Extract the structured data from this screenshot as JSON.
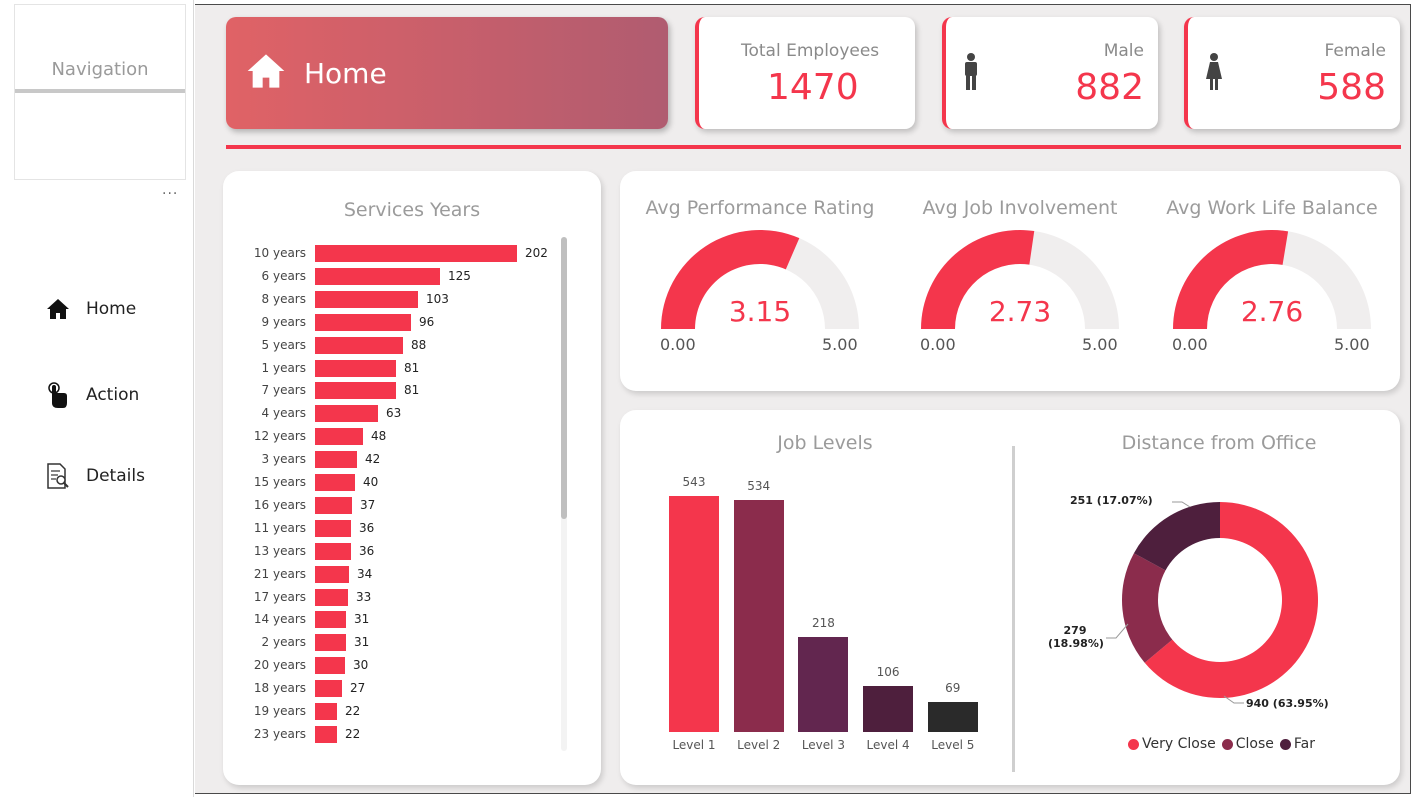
{
  "sidebar": {
    "title": "Navigation",
    "more": "...",
    "items": [
      {
        "label": "Home",
        "icon": "home-icon"
      },
      {
        "label": "Action",
        "icon": "hand-pointer-icon"
      },
      {
        "label": "Details",
        "icon": "document-search-icon"
      }
    ]
  },
  "header": {
    "title": "Home",
    "kpis": {
      "total": {
        "label": "Total Employees",
        "value": "1470"
      },
      "male": {
        "label": "Male",
        "value": "882"
      },
      "female": {
        "label": "Female",
        "value": "588"
      }
    }
  },
  "colors": {
    "accent": "#f4364c",
    "level2": "#8b2c4c",
    "level3": "#62264f",
    "level4": "#4e1f3d",
    "level5": "#2a2a2a",
    "gauge_track": "#f0eeee"
  },
  "gauges": [
    {
      "title": "Avg Performance Rating",
      "value": "3.15",
      "min": "0.00",
      "max": "5.00"
    },
    {
      "title": "Avg Job Involvement",
      "value": "2.73",
      "min": "0.00",
      "max": "5.00"
    },
    {
      "title": "Avg Work Life Balance",
      "value": "2.76",
      "min": "0.00",
      "max": "5.00"
    }
  ],
  "chart_data": [
    {
      "type": "bar",
      "orientation": "horizontal",
      "title": "Services Years",
      "categories": [
        "10 years",
        "6 years",
        "8 years",
        "9 years",
        "5 years",
        "1 years",
        "7 years",
        "4 years",
        "12 years",
        "3 years",
        "15 years",
        "16 years",
        "11 years",
        "13 years",
        "21 years",
        "17 years",
        "14 years",
        "2 years",
        "20 years",
        "18 years",
        "19 years",
        "23 years"
      ],
      "values": [
        202,
        125,
        103,
        96,
        88,
        81,
        81,
        63,
        48,
        42,
        40,
        37,
        36,
        36,
        34,
        33,
        31,
        31,
        30,
        27,
        22,
        22
      ]
    },
    {
      "type": "bar",
      "title": "Job Levels",
      "categories": [
        "Level 1",
        "Level 2",
        "Level 3",
        "Level 4",
        "Level 5"
      ],
      "values": [
        543,
        534,
        218,
        106,
        69
      ]
    },
    {
      "type": "pie",
      "variant": "donut",
      "title": "Distance from Office",
      "slices": [
        {
          "name": "Very Close",
          "value": 940,
          "label": "940 (63.95%)",
          "color": "#f4364c"
        },
        {
          "name": "Close",
          "value": 279,
          "label_line1": "279",
          "label_line2": "(18.98%)",
          "color": "#8b2c4c"
        },
        {
          "name": "Far",
          "value": 251,
          "label": "251 (17.07%)",
          "color": "#4e1f3d"
        }
      ],
      "legend": [
        "Very Close",
        "Close",
        "Far"
      ],
      "legend_position": "bottom"
    }
  ]
}
